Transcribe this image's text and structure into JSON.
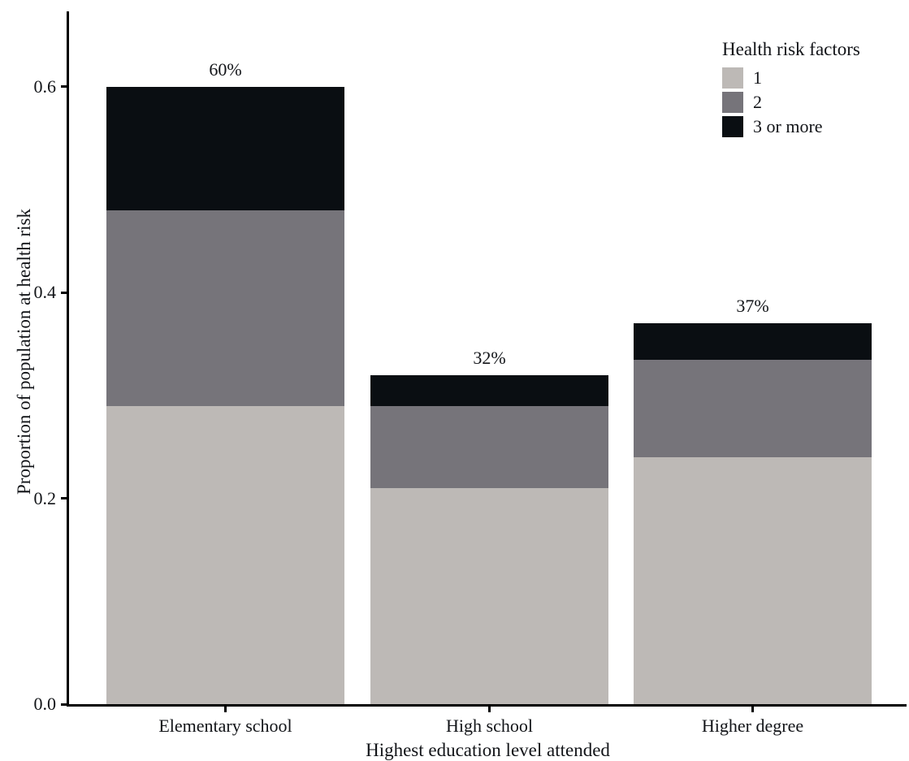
{
  "figure": {
    "ylabel": "Proportion of population at health risk",
    "xlabel": "Highest education level attended"
  },
  "legend": {
    "title": "Health risk factors",
    "items": [
      {
        "label": "1",
        "color": "#bdb9b6"
      },
      {
        "label": "2",
        "color": "#76747a"
      },
      {
        "label": "3 or more",
        "color": "#0a0e12"
      }
    ]
  },
  "chart_data": {
    "type": "bar",
    "stacked": true,
    "title": "",
    "xlabel": "Highest education level attended",
    "ylabel": "Proportion of population at health risk",
    "categories": [
      "Elementary school",
      "High school",
      "Higher degree"
    ],
    "series": [
      {
        "name": "1",
        "color": "#bdb9b6",
        "values": [
          0.29,
          0.21,
          0.24
        ]
      },
      {
        "name": "2",
        "color": "#76747a",
        "values": [
          0.19,
          0.08,
          0.095
        ]
      },
      {
        "name": "3 or more",
        "color": "#0a0e12",
        "values": [
          0.12,
          0.03,
          0.035
        ]
      }
    ],
    "totals": [
      0.6,
      0.32,
      0.37
    ],
    "total_labels": [
      "60%",
      "32%",
      "37%"
    ],
    "y_ticks": [
      "0.0",
      "0.2",
      "0.4",
      "0.6"
    ],
    "ylim": [
      0,
      0.676
    ],
    "grid": false,
    "legend_title": "Health risk factors",
    "legend_position": "inside top-right"
  }
}
